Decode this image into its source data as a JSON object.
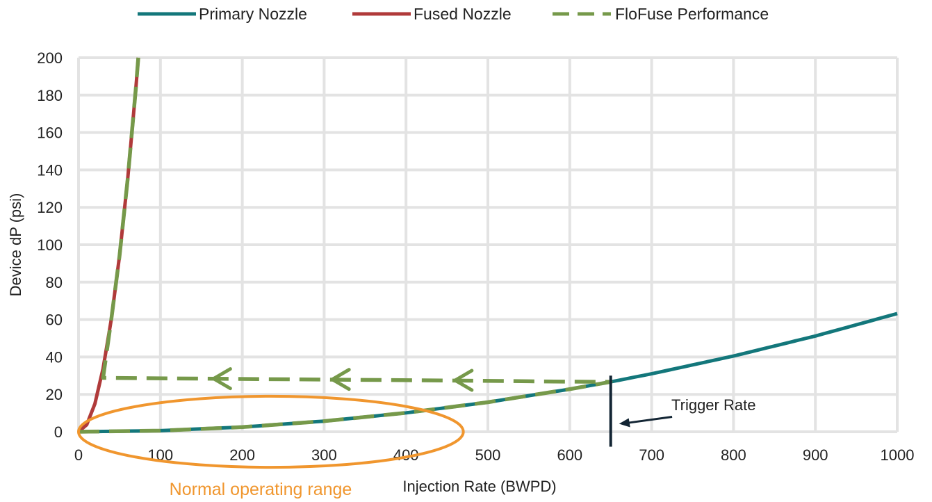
{
  "chart_data": {
    "type": "line",
    "title": "",
    "xlabel": "Injection Rate (BWPD)",
    "ylabel": "Device dP (psi)",
    "xlim": [
      0,
      1000
    ],
    "ylim": [
      0,
      200
    ],
    "x_ticks": [
      0,
      100,
      200,
      300,
      400,
      500,
      600,
      700,
      800,
      900,
      1000
    ],
    "y_ticks": [
      0,
      20,
      40,
      60,
      80,
      100,
      120,
      140,
      160,
      180,
      200
    ],
    "grid": true,
    "legend_position": "top",
    "series": [
      {
        "name": "Primary Nozzle",
        "color": "#13777b",
        "style": "solid",
        "x": [
          0,
          100,
          200,
          300,
          400,
          500,
          600,
          650,
          700,
          800,
          900,
          1000
        ],
        "y": [
          0,
          0.6,
          2.5,
          5.7,
          10.1,
          15.8,
          22.8,
          26.7,
          31.0,
          40.5,
          51.2,
          63.2
        ]
      },
      {
        "name": "Fused Nozzle",
        "color": "#b03a3a",
        "style": "solid",
        "x": [
          0,
          10,
          20,
          30,
          40,
          50,
          60,
          70,
          73
        ],
        "y": [
          0,
          3.8,
          15.0,
          33.8,
          60.0,
          93.8,
          135.0,
          183.8,
          200
        ]
      },
      {
        "name": "FloFuse Performance",
        "color": "#76994a",
        "style": "dashed",
        "x": [
          0,
          100,
          200,
          300,
          400,
          500,
          600,
          650,
          600,
          450,
          300,
          150,
          30,
          40,
          50,
          60,
          70,
          73
        ],
        "y": [
          0,
          0.6,
          2.5,
          5.7,
          10.1,
          15.8,
          22.8,
          26.7,
          26.8,
          27.4,
          27.9,
          28.4,
          28.8,
          60.0,
          93.8,
          135.0,
          183.8,
          200
        ]
      }
    ],
    "annotations": {
      "trigger_label": "Trigger Rate",
      "trigger_x": 650,
      "trigger_y_range": [
        -8,
        30
      ],
      "range_label": "Normal operating range",
      "range_color": "#f0962e",
      "range_center": [
        235,
        0
      ],
      "range_radius": [
        235,
        19
      ]
    }
  }
}
